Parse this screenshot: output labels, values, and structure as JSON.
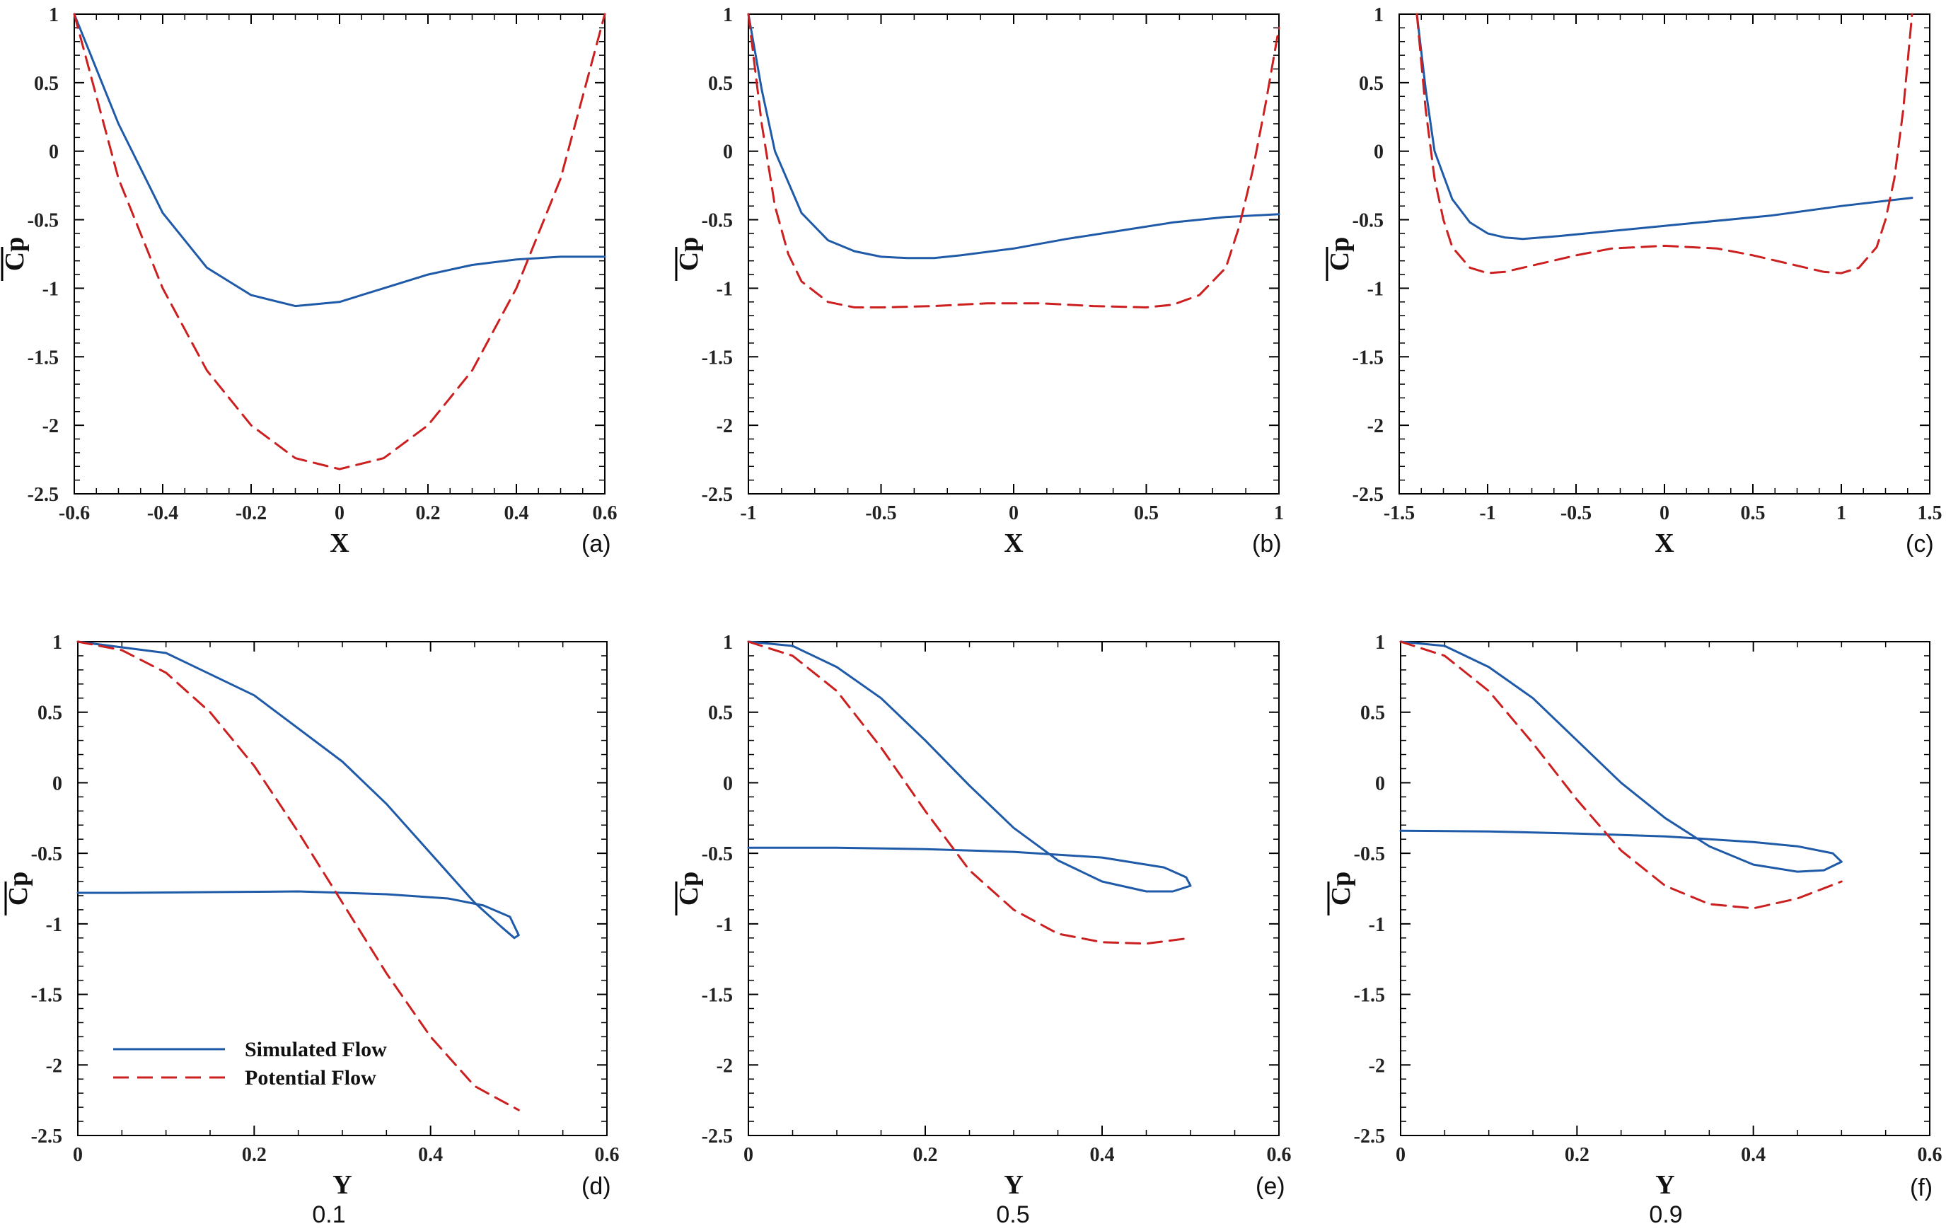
{
  "colors": {
    "simulated": "#1f5aa8",
    "potential": "#cc1f1f",
    "axis": "#000000"
  },
  "legend": {
    "simulated_label": "Simulated Flow",
    "potential_label": "Potential Flow"
  },
  "captions": [
    "0.1",
    "0.5",
    "0.9"
  ],
  "chart_data": [
    {
      "id": "a",
      "tag": "(a)",
      "type": "line",
      "xlabel": "X",
      "ylabel": "Cp",
      "xlim": [
        -0.6,
        0.6
      ],
      "ylim": [
        -2.5,
        1
      ],
      "xticks": [
        -0.6,
        -0.4,
        -0.2,
        0,
        0.2,
        0.4,
        0.6
      ],
      "xtick_labels": [
        "-0.6",
        "-0.4",
        "-0.2",
        "0",
        "0.2",
        "0.4",
        "0.6"
      ],
      "yticks": [
        1,
        0.5,
        0,
        -0.5,
        -1,
        -1.5,
        -2,
        -2.5
      ],
      "ytick_labels": [
        "1",
        "0.5",
        "0",
        "-0.5",
        "-1",
        "-1.5",
        "-2",
        "-2.5"
      ],
      "series": [
        {
          "name": "Simulated Flow",
          "style": "solid",
          "x": [
            -0.6,
            -0.5,
            -0.4,
            -0.3,
            -0.2,
            -0.1,
            0,
            0.1,
            0.2,
            0.3,
            0.4,
            0.5,
            0.6
          ],
          "y": [
            1.0,
            0.2,
            -0.45,
            -0.85,
            -1.05,
            -1.13,
            -1.1,
            -1.0,
            -0.9,
            -0.83,
            -0.79,
            -0.77,
            -0.77
          ]
        },
        {
          "name": "Potential Flow",
          "style": "dashed",
          "x": [
            -0.6,
            -0.5,
            -0.4,
            -0.3,
            -0.2,
            -0.1,
            0,
            0.1,
            0.2,
            0.3,
            0.4,
            0.5,
            0.6
          ],
          "y": [
            1.0,
            -0.2,
            -1.0,
            -1.6,
            -2.0,
            -2.24,
            -2.32,
            -2.24,
            -2.0,
            -1.6,
            -1.0,
            -0.2,
            1.0
          ]
        }
      ]
    },
    {
      "id": "b",
      "tag": "(b)",
      "type": "line",
      "xlabel": "X",
      "ylabel": "Cp",
      "xlim": [
        -1,
        1
      ],
      "ylim": [
        -2.5,
        1
      ],
      "xticks": [
        -1,
        -0.5,
        0,
        0.5,
        1
      ],
      "xtick_labels": [
        "-1",
        "-0.5",
        "0",
        "0.5",
        "1"
      ],
      "yticks": [
        1,
        0.5,
        0,
        -0.5,
        -1,
        -1.5,
        -2,
        -2.5
      ],
      "ytick_labels": [
        "1",
        "0.5",
        "0",
        "-0.5",
        "-1",
        "-1.5",
        "-2",
        "-2.5"
      ],
      "series": [
        {
          "name": "Simulated Flow",
          "style": "solid",
          "x": [
            -1,
            -0.95,
            -0.9,
            -0.8,
            -0.7,
            -0.6,
            -0.5,
            -0.4,
            -0.3,
            -0.2,
            0,
            0.2,
            0.4,
            0.6,
            0.8,
            1.0
          ],
          "y": [
            1.0,
            0.45,
            0.0,
            -0.45,
            -0.65,
            -0.73,
            -0.77,
            -0.78,
            -0.78,
            -0.76,
            -0.71,
            -0.64,
            -0.58,
            -0.52,
            -0.48,
            -0.46
          ]
        },
        {
          "name": "Potential Flow",
          "style": "dashed",
          "x": [
            -1,
            -0.95,
            -0.9,
            -0.85,
            -0.8,
            -0.7,
            -0.6,
            -0.5,
            -0.3,
            -0.1,
            0,
            0.1,
            0.3,
            0.5,
            0.6,
            0.7,
            0.8,
            0.85,
            0.9,
            0.95,
            1.0
          ],
          "y": [
            1.0,
            0.2,
            -0.4,
            -0.75,
            -0.95,
            -1.1,
            -1.14,
            -1.14,
            -1.13,
            -1.11,
            -1.11,
            -1.11,
            -1.13,
            -1.14,
            -1.12,
            -1.05,
            -0.85,
            -0.55,
            -0.15,
            0.35,
            0.9
          ]
        }
      ]
    },
    {
      "id": "c",
      "tag": "(c)",
      "type": "line",
      "xlabel": "X",
      "ylabel": "Cp",
      "xlim": [
        -1.5,
        1.5
      ],
      "ylim": [
        -2.5,
        1
      ],
      "xticks": [
        -1.5,
        -1,
        -0.5,
        0,
        0.5,
        1,
        1.5
      ],
      "xtick_labels": [
        "-1.5",
        "-1",
        "-0.5",
        "0",
        "0.5",
        "1",
        "1.5"
      ],
      "yticks": [
        1,
        0.5,
        0,
        -0.5,
        -1,
        -1.5,
        -2,
        -2.5
      ],
      "ytick_labels": [
        "1",
        "0.5",
        "0",
        "-0.5",
        "-1",
        "-1.5",
        "-2",
        "-2.5"
      ],
      "series": [
        {
          "name": "Simulated Flow",
          "style": "solid",
          "x": [
            -1.4,
            -1.35,
            -1.3,
            -1.2,
            -1.1,
            -1.0,
            -0.9,
            -0.8,
            -0.6,
            -0.2,
            0.2,
            0.6,
            1.0,
            1.4
          ],
          "y": [
            1.0,
            0.45,
            0.0,
            -0.35,
            -0.52,
            -0.6,
            -0.63,
            -0.64,
            -0.62,
            -0.57,
            -0.52,
            -0.47,
            -0.4,
            -0.34
          ]
        },
        {
          "name": "Potential Flow",
          "style": "dashed",
          "x": [
            -1.4,
            -1.35,
            -1.3,
            -1.25,
            -1.2,
            -1.1,
            -1.0,
            -0.9,
            -0.7,
            -0.5,
            -0.3,
            0,
            0.3,
            0.5,
            0.7,
            0.9,
            1.0,
            1.1,
            1.2,
            1.25,
            1.3,
            1.35,
            1.4
          ],
          "y": [
            1.0,
            0.3,
            -0.2,
            -0.5,
            -0.7,
            -0.85,
            -0.89,
            -0.88,
            -0.82,
            -0.76,
            -0.71,
            -0.69,
            -0.71,
            -0.76,
            -0.82,
            -0.88,
            -0.89,
            -0.85,
            -0.7,
            -0.5,
            -0.2,
            0.3,
            1.0
          ]
        }
      ]
    },
    {
      "id": "d",
      "tag": "(d)",
      "type": "line",
      "xlabel": "Y",
      "ylabel": "Cp",
      "xlim": [
        0,
        0.6
      ],
      "ylim": [
        -2.5,
        1
      ],
      "xticks": [
        0,
        0.2,
        0.4,
        0.6
      ],
      "xtick_labels": [
        "0",
        "0.2",
        "0.4",
        "0.6"
      ],
      "yticks": [
        1,
        0.5,
        0,
        -0.5,
        -1,
        -1.5,
        -2,
        -2.5
      ],
      "ytick_labels": [
        "1",
        "0.5",
        "0",
        "-0.5",
        "-1",
        "-1.5",
        "-2",
        "-2.5"
      ],
      "series": [
        {
          "name": "Simulated Flow",
          "style": "solid",
          "x": [
            0,
            0.1,
            0.2,
            0.3,
            0.35,
            0.4,
            0.45,
            0.48,
            0.495,
            0.5,
            0.49,
            0.46,
            0.42,
            0.35,
            0.25,
            0.15,
            0.05,
            0
          ],
          "y": [
            1.0,
            0.92,
            0.62,
            0.15,
            -0.15,
            -0.5,
            -0.85,
            -1.02,
            -1.1,
            -1.08,
            -0.95,
            -0.87,
            -0.82,
            -0.79,
            -0.77,
            -0.775,
            -0.78,
            -0.78
          ]
        },
        {
          "name": "Potential Flow",
          "style": "dashed",
          "x": [
            0,
            0.05,
            0.1,
            0.15,
            0.2,
            0.25,
            0.3,
            0.35,
            0.4,
            0.45,
            0.5
          ],
          "y": [
            1.0,
            0.94,
            0.78,
            0.5,
            0.12,
            -0.35,
            -0.85,
            -1.35,
            -1.8,
            -2.15,
            -2.32
          ]
        }
      ]
    },
    {
      "id": "e",
      "tag": "(e)",
      "type": "line",
      "xlabel": "Y",
      "ylabel": "Cp",
      "xlim": [
        0,
        0.6
      ],
      "ylim": [
        -2.5,
        1
      ],
      "xticks": [
        0,
        0.2,
        0.4,
        0.6
      ],
      "xtick_labels": [
        "0",
        "0.2",
        "0.4",
        "0.6"
      ],
      "yticks": [
        1,
        0.5,
        0,
        -0.5,
        -1,
        -1.5,
        -2,
        -2.5
      ],
      "ytick_labels": [
        "1",
        "0.5",
        "0",
        "-0.5",
        "-1",
        "-1.5",
        "-2",
        "-2.5"
      ],
      "series": [
        {
          "name": "Simulated Flow",
          "style": "solid",
          "x": [
            0,
            0.05,
            0.1,
            0.15,
            0.2,
            0.25,
            0.3,
            0.35,
            0.4,
            0.45,
            0.48,
            0.5,
            0.495,
            0.47,
            0.4,
            0.3,
            0.2,
            0.1,
            0
          ],
          "y": [
            1.0,
            0.97,
            0.82,
            0.6,
            0.3,
            -0.02,
            -0.32,
            -0.55,
            -0.7,
            -0.77,
            -0.77,
            -0.73,
            -0.67,
            -0.6,
            -0.53,
            -0.49,
            -0.47,
            -0.46,
            -0.46
          ]
        },
        {
          "name": "Potential Flow",
          "style": "dashed",
          "x": [
            0,
            0.05,
            0.1,
            0.15,
            0.2,
            0.25,
            0.3,
            0.35,
            0.4,
            0.45,
            0.5
          ],
          "y": [
            1.0,
            0.9,
            0.65,
            0.25,
            -0.2,
            -0.62,
            -0.9,
            -1.07,
            -1.13,
            -1.14,
            -1.1
          ]
        }
      ]
    },
    {
      "id": "f",
      "tag": "(f)",
      "type": "line",
      "xlabel": "Y",
      "ylabel": "Cp",
      "xlim": [
        0,
        0.6
      ],
      "ylim": [
        -2.5,
        1
      ],
      "xticks": [
        0,
        0.2,
        0.4,
        0.6
      ],
      "xtick_labels": [
        "0",
        "0.2",
        "0.4",
        "0.6"
      ],
      "yticks": [
        1,
        0.5,
        0,
        -0.5,
        -1,
        -1.5,
        -2,
        -2.5
      ],
      "ytick_labels": [
        "1",
        "0.5",
        "0",
        "-0.5",
        "-1",
        "-1.5",
        "-2",
        "-2.5"
      ],
      "series": [
        {
          "name": "Simulated Flow",
          "style": "solid",
          "x": [
            0,
            0.05,
            0.1,
            0.15,
            0.2,
            0.25,
            0.3,
            0.35,
            0.4,
            0.45,
            0.48,
            0.5,
            0.49,
            0.45,
            0.4,
            0.3,
            0.2,
            0.1,
            0
          ],
          "y": [
            1.0,
            0.97,
            0.82,
            0.6,
            0.3,
            0.0,
            -0.25,
            -0.45,
            -0.58,
            -0.63,
            -0.62,
            -0.56,
            -0.5,
            -0.45,
            -0.42,
            -0.38,
            -0.36,
            -0.345,
            -0.34
          ]
        },
        {
          "name": "Potential Flow",
          "style": "dashed",
          "x": [
            0,
            0.05,
            0.1,
            0.15,
            0.2,
            0.25,
            0.3,
            0.35,
            0.4,
            0.45,
            0.5
          ],
          "y": [
            1.0,
            0.9,
            0.65,
            0.28,
            -0.12,
            -0.48,
            -0.73,
            -0.86,
            -0.89,
            -0.82,
            -0.7
          ]
        }
      ]
    }
  ]
}
